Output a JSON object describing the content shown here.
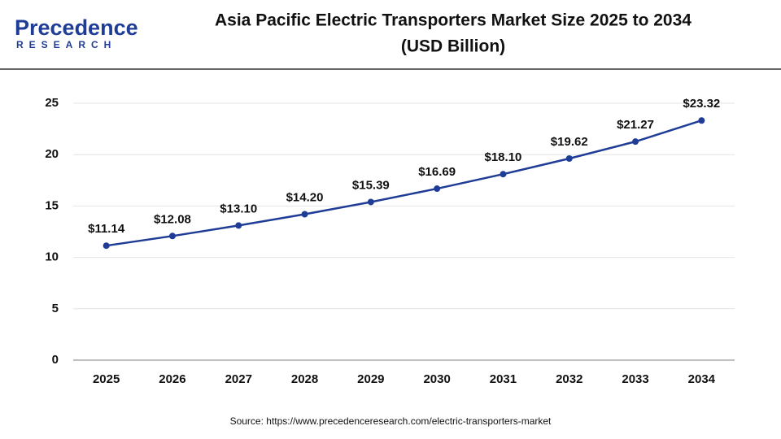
{
  "logo": {
    "name": "Precedence",
    "tagline": "RESEARCH"
  },
  "chart_data": {
    "type": "line",
    "title": "Asia Pacific Electric Transporters Market Size 2025 to 2034",
    "subtitle": "(USD Billion)",
    "source": "Source: https://www.precedenceresearch.com/electric-transporters-market",
    "categories": [
      "2025",
      "2026",
      "2027",
      "2028",
      "2029",
      "2030",
      "2031",
      "2032",
      "2033",
      "2034"
    ],
    "values": [
      11.14,
      12.08,
      13.1,
      14.2,
      15.39,
      16.69,
      18.1,
      19.62,
      21.27,
      23.32
    ],
    "value_labels": [
      "$11.14",
      "$12.08",
      "$13.10",
      "$14.20",
      "$15.39",
      "$16.69",
      "$18.10",
      "$19.62",
      "$21.27",
      "$23.32"
    ],
    "color": "#1f3d96",
    "ylim": [
      0,
      25
    ],
    "yticks": [
      0,
      5,
      10,
      15,
      20,
      25
    ],
    "grid": true
  }
}
